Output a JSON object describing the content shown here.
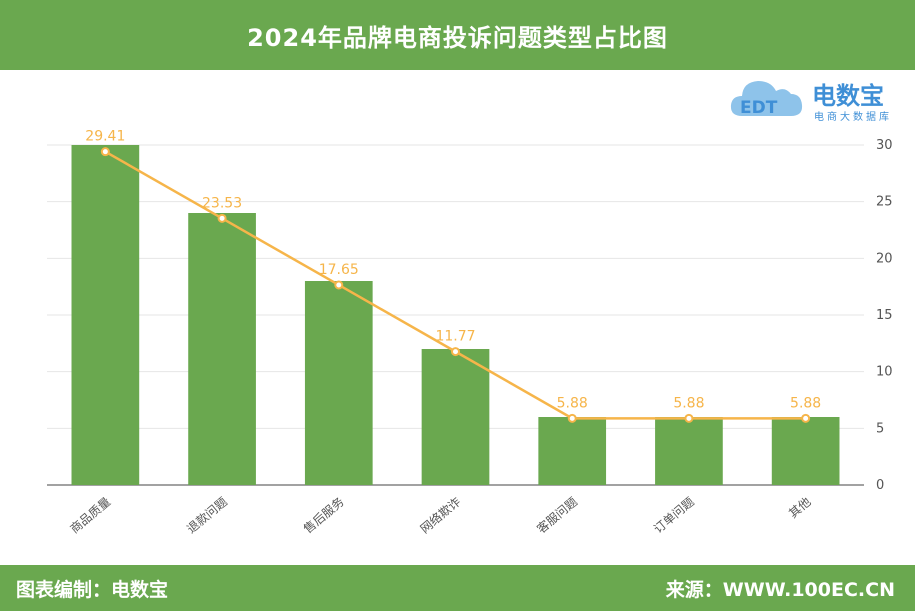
{
  "header": {
    "title": "2024年品牌电商投诉问题类型占比图"
  },
  "footer": {
    "left": "图表编制：电数宝",
    "right": "来源：WWW.100EC.CN"
  },
  "logo": {
    "name": "电数宝",
    "sub": "电商大数据库",
    "mark_text": "EDT",
    "color": "#3f8fd6"
  },
  "colors": {
    "header_bg": "#6aa84f",
    "bar": "#6aa84f",
    "line": "#f6b54a",
    "label": "#f6b54a"
  },
  "chart_data": {
    "type": "bar",
    "categories": [
      "商品质量",
      "退款问题",
      "售后服务",
      "网络欺诈",
      "客服问题",
      "订单问题",
      "其他"
    ],
    "series": [
      {
        "type": "bar",
        "values": [
          30,
          24,
          18,
          12,
          6,
          6,
          6
        ]
      },
      {
        "type": "line",
        "values": [
          29.41,
          23.53,
          17.65,
          11.77,
          5.88,
          5.88,
          5.88
        ]
      }
    ],
    "data_labels": [
      "29.41",
      "23.53",
      "17.65",
      "11.77",
      "5.88",
      "5.88",
      "5.88"
    ],
    "y_ticks": [
      0,
      5,
      10,
      15,
      20,
      25,
      30
    ],
    "ylim": [
      0,
      30
    ],
    "y_axis_side": "right",
    "grid": true
  }
}
